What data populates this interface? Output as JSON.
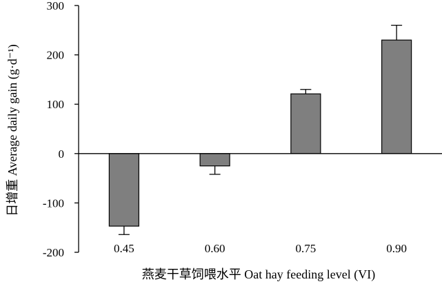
{
  "chart_data": {
    "type": "bar",
    "title": "",
    "xlabel": "燕麦干草饲喂水平 Oat hay feeding level (VI)",
    "ylabel": "日增重 Average daily gain (g·d⁻¹)",
    "categories": [
      "0.45",
      "0.60",
      "0.75",
      "0.90"
    ],
    "series": [
      {
        "values": [
          -147,
          -25,
          121,
          230
        ],
        "error": [
          17,
          17,
          9,
          30
        ]
      }
    ],
    "ylim": [
      -200,
      300
    ],
    "yticks": [
      -200,
      -100,
      0,
      100,
      200,
      300
    ],
    "ytick_labels": [
      "-200",
      "-100",
      "0",
      "100",
      "200",
      "300"
    ],
    "grid": false,
    "legend": "none",
    "colors": {
      "bar_fill": "#7f7f7f",
      "bar_stroke": "#000000",
      "axis": "#000000"
    }
  }
}
